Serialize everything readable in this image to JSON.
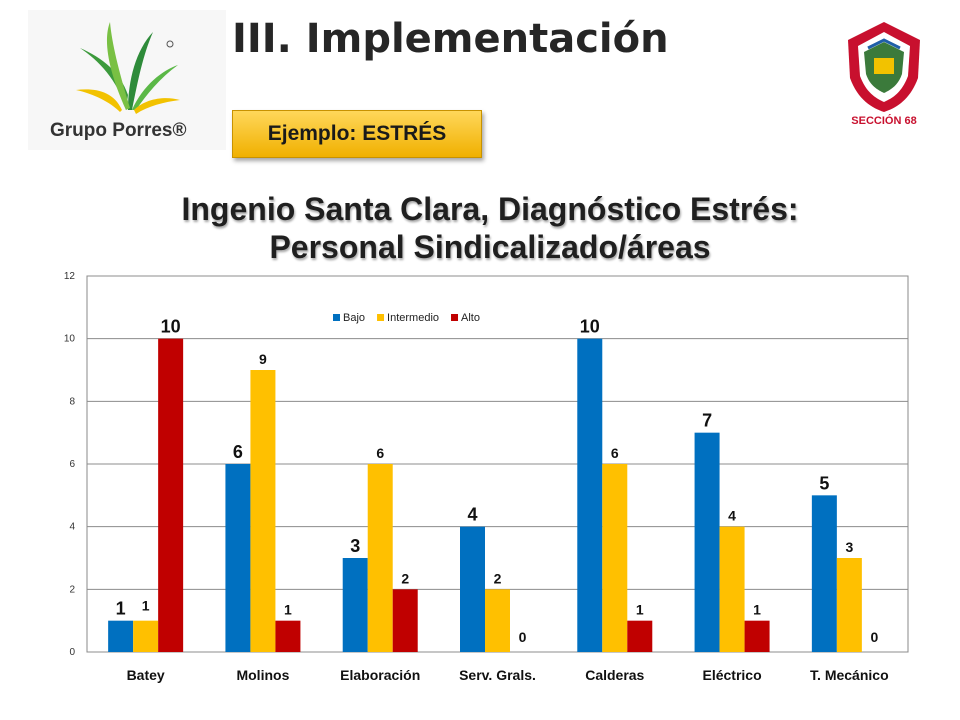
{
  "slide": {
    "title": "III. Implementación",
    "example_label": "Ejemplo: ESTRÉS",
    "logo_left_text": "Grupo Porres®",
    "logo_right_text": "SECCIÓN 68"
  },
  "colors": {
    "bajo": "#0070C0",
    "intermedio": "#FFC000",
    "alto": "#C00000",
    "example_box": "#FFC000"
  },
  "chart_data": {
    "type": "bar",
    "title": "Ingenio Santa Clara, Diagnóstico Estrés: Personal Sindicalizado/áreas",
    "title_lines": [
      "Ingenio Santa Clara, Diagnóstico Estrés:",
      "Personal Sindicalizado/áreas"
    ],
    "xlabel": "",
    "ylabel": "",
    "categories": [
      "Batey",
      "Molinos",
      "Elaboración",
      "Serv. Grals.",
      "Calderas",
      "Eléctrico",
      "T. Mecánico"
    ],
    "series": [
      {
        "name": "Bajo",
        "color": "#0070C0",
        "values": [
          1,
          6,
          3,
          4,
          10,
          7,
          5
        ]
      },
      {
        "name": "Intermedio",
        "color": "#FFC000",
        "values": [
          1,
          9,
          6,
          2,
          6,
          4,
          3
        ]
      },
      {
        "name": "Alto",
        "color": "#C00000",
        "values": [
          10,
          1,
          2,
          0,
          1,
          1,
          0
        ]
      }
    ],
    "ylim": [
      0,
      12
    ],
    "yticks": [
      0,
      2,
      4,
      6,
      8,
      10,
      12
    ],
    "grid": true,
    "legend_position": "top-center",
    "data_labels": true
  }
}
